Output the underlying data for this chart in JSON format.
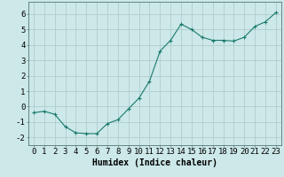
{
  "x": [
    0,
    1,
    2,
    3,
    4,
    5,
    6,
    7,
    8,
    9,
    10,
    11,
    12,
    13,
    14,
    15,
    16,
    17,
    18,
    19,
    20,
    21,
    22,
    23
  ],
  "y": [
    -0.4,
    -0.3,
    -0.5,
    -1.3,
    -1.7,
    -1.75,
    -1.75,
    -1.1,
    -0.85,
    -0.15,
    0.55,
    1.65,
    3.6,
    4.3,
    5.35,
    5.0,
    4.5,
    4.3,
    4.3,
    4.25,
    4.5,
    5.2,
    5.5,
    6.1
  ],
  "line_color": "#1a7a6e",
  "marker": "+",
  "marker_size": 3,
  "marker_linewidth": 0.8,
  "line_width": 0.8,
  "bg_color": "#cce8e8",
  "grid_color": "#b0cccc",
  "xlabel": "Humidex (Indice chaleur)",
  "ylim": [
    -2.5,
    6.8
  ],
  "xlim": [
    -0.5,
    23.5
  ],
  "yticks": [
    -2,
    -1,
    0,
    1,
    2,
    3,
    4,
    5,
    6
  ],
  "xticks": [
    0,
    1,
    2,
    3,
    4,
    5,
    6,
    7,
    8,
    9,
    10,
    11,
    12,
    13,
    14,
    15,
    16,
    17,
    18,
    19,
    20,
    21,
    22,
    23
  ],
  "xtick_labels": [
    "0",
    "1",
    "2",
    "3",
    "4",
    "5",
    "6",
    "7",
    "8",
    "9",
    "10",
    "11",
    "12",
    "13",
    "14",
    "15",
    "16",
    "17",
    "18",
    "19",
    "20",
    "21",
    "22",
    "23"
  ],
  "xlabel_fontsize": 7,
  "tick_fontsize": 6.5
}
